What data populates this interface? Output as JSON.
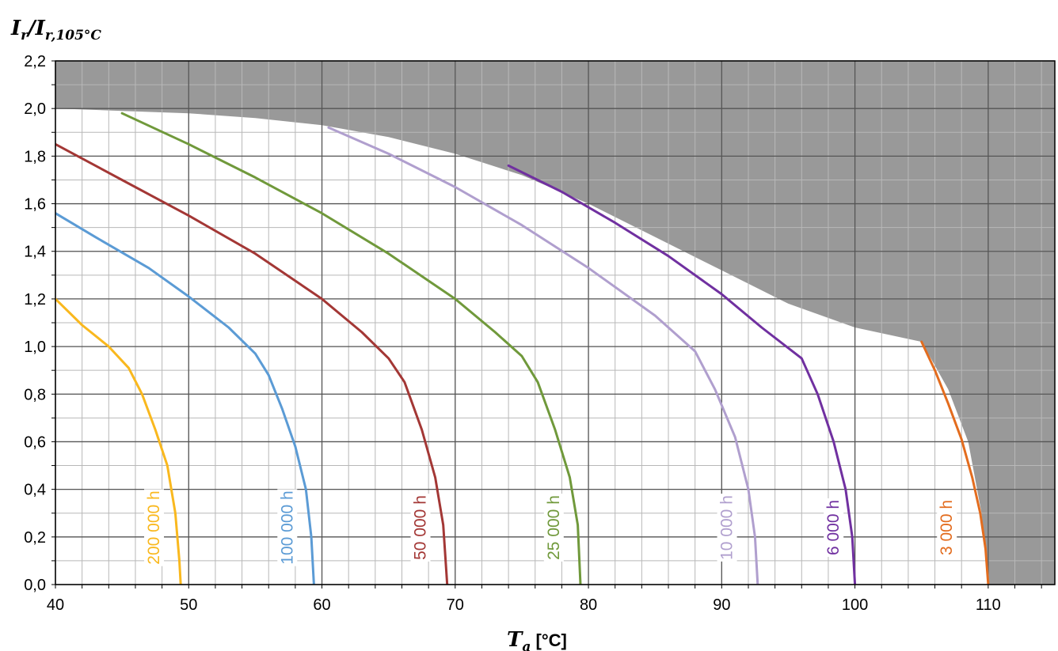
{
  "chart_data": {
    "type": "line",
    "title": "",
    "ylabel": {
      "main": "I",
      "sub1": "r",
      "slash": "/",
      "main2": "I",
      "sub2": "r,105°C"
    },
    "xlabel": {
      "main": "T",
      "sub": "a",
      "unit": " [°C]"
    },
    "xlim": [
      40,
      115
    ],
    "ylim": [
      0,
      2.2
    ],
    "x_ticks": [
      40,
      50,
      60,
      70,
      80,
      90,
      100,
      110
    ],
    "x_tick_labels": [
      "40",
      "50",
      "60",
      "70",
      "80",
      "90",
      "100",
      "110"
    ],
    "y_ticks": [
      0,
      0.2,
      0.4,
      0.6,
      0.8,
      1.0,
      1.2,
      1.4,
      1.6,
      1.8,
      2.0,
      2.2
    ],
    "y_tick_labels": [
      "0,0",
      "0,2",
      "0,4",
      "0,6",
      "0,8",
      "1,0",
      "1,2",
      "1,4",
      "1,6",
      "1,8",
      "2,0",
      "2,2"
    ],
    "grid": true,
    "shaded_region": {
      "color": "#999999",
      "boundary": [
        [
          40,
          2.0
        ],
        [
          45,
          1.99
        ],
        [
          50,
          1.98
        ],
        [
          55,
          1.96
        ],
        [
          60,
          1.93
        ],
        [
          65,
          1.88
        ],
        [
          70,
          1.81
        ],
        [
          75,
          1.72
        ],
        [
          80,
          1.6
        ],
        [
          85,
          1.46
        ],
        [
          90,
          1.32
        ],
        [
          95,
          1.18
        ],
        [
          100,
          1.08
        ],
        [
          105,
          1.02
        ],
        [
          107,
          0.82
        ],
        [
          108.5,
          0.6
        ],
        [
          109.5,
          0.3
        ],
        [
          110,
          0.0
        ]
      ]
    },
    "series": [
      {
        "name": "200 000 h",
        "color": "#F9B81E",
        "label_x": 47.4,
        "points": [
          [
            40,
            1.2
          ],
          [
            42,
            1.09
          ],
          [
            44,
            1.0
          ],
          [
            45.5,
            0.91
          ],
          [
            46.5,
            0.8
          ],
          [
            47.5,
            0.65
          ],
          [
            48.4,
            0.5
          ],
          [
            49.0,
            0.3
          ],
          [
            49.3,
            0.1
          ],
          [
            49.4,
            0.0
          ]
        ]
      },
      {
        "name": "100 000 h",
        "color": "#5B9BD5",
        "label_x": 57.4,
        "points": [
          [
            40,
            1.56
          ],
          [
            43,
            1.46
          ],
          [
            47,
            1.33
          ],
          [
            50,
            1.21
          ],
          [
            53,
            1.08
          ],
          [
            55,
            0.97
          ],
          [
            56,
            0.88
          ],
          [
            57,
            0.74
          ],
          [
            58,
            0.58
          ],
          [
            58.8,
            0.4
          ],
          [
            59.2,
            0.2
          ],
          [
            59.4,
            0.0
          ]
        ]
      },
      {
        "name": "50 000 h",
        "color": "#A33735",
        "label_x": 67.4,
        "points": [
          [
            40,
            1.85
          ],
          [
            45,
            1.7
          ],
          [
            50,
            1.55
          ],
          [
            55,
            1.39
          ],
          [
            60,
            1.2
          ],
          [
            63,
            1.06
          ],
          [
            65,
            0.95
          ],
          [
            66.2,
            0.85
          ],
          [
            67.5,
            0.65
          ],
          [
            68.5,
            0.45
          ],
          [
            69.1,
            0.25
          ],
          [
            69.4,
            0.0
          ]
        ]
      },
      {
        "name": "25 000 h",
        "color": "#70993B",
        "label_x": 77.4,
        "points": [
          [
            45,
            1.98
          ],
          [
            50,
            1.85
          ],
          [
            55,
            1.71
          ],
          [
            60,
            1.56
          ],
          [
            65,
            1.39
          ],
          [
            70,
            1.2
          ],
          [
            73,
            1.06
          ],
          [
            75,
            0.96
          ],
          [
            76.2,
            0.85
          ],
          [
            77.5,
            0.65
          ],
          [
            78.6,
            0.45
          ],
          [
            79.2,
            0.25
          ],
          [
            79.4,
            0.0
          ]
        ]
      },
      {
        "name": "10 000 h",
        "color": "#B09FCE",
        "label_x": 90.4,
        "points": [
          [
            60.5,
            1.92
          ],
          [
            65,
            1.81
          ],
          [
            70,
            1.67
          ],
          [
            75,
            1.51
          ],
          [
            80,
            1.33
          ],
          [
            85,
            1.13
          ],
          [
            88,
            0.98
          ],
          [
            89.5,
            0.82
          ],
          [
            91.0,
            0.62
          ],
          [
            92.0,
            0.4
          ],
          [
            92.5,
            0.2
          ],
          [
            92.7,
            0.0
          ]
        ]
      },
      {
        "name": "6 000 h",
        "color": "#7030A0",
        "label_x": 98.4,
        "points": [
          [
            74,
            1.76
          ],
          [
            78,
            1.65
          ],
          [
            82,
            1.52
          ],
          [
            86,
            1.38
          ],
          [
            90,
            1.22
          ],
          [
            93,
            1.08
          ],
          [
            96,
            0.95
          ],
          [
            97.2,
            0.8
          ],
          [
            98.4,
            0.6
          ],
          [
            99.3,
            0.4
          ],
          [
            99.8,
            0.2
          ],
          [
            100.0,
            0.0
          ]
        ]
      },
      {
        "name": "3 000 h",
        "color": "#E36C1E",
        "label_x": 106.9,
        "points": [
          [
            105,
            1.02
          ],
          [
            106,
            0.9
          ],
          [
            107,
            0.76
          ],
          [
            108,
            0.61
          ],
          [
            108.8,
            0.45
          ],
          [
            109.4,
            0.3
          ],
          [
            109.8,
            0.15
          ],
          [
            110.0,
            0.0
          ]
        ]
      }
    ]
  }
}
